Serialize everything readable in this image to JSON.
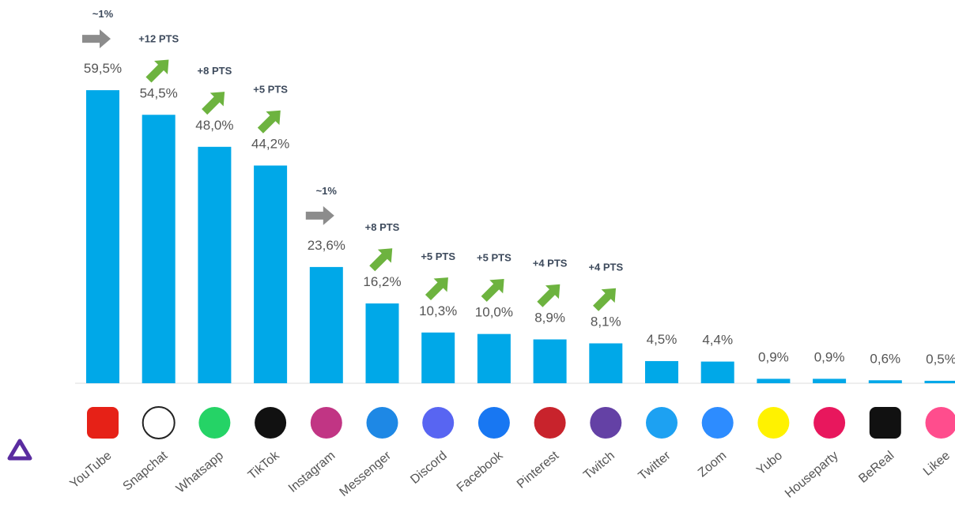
{
  "chart_data": {
    "type": "bar",
    "categories": [
      "YouTube",
      "Snapchat",
      "Whatsapp",
      "TikTok",
      "Instagram",
      "Messenger",
      "Discord",
      "Facebook",
      "Pinterest",
      "Twitch",
      "Twitter",
      "Zoom",
      "Yubo",
      "Houseparty",
      "BeReal",
      "Likee"
    ],
    "values": [
      59.5,
      54.5,
      48.0,
      44.2,
      23.6,
      16.2,
      10.3,
      10.0,
      8.9,
      8.1,
      4.5,
      4.4,
      0.9,
      0.9,
      0.6,
      0.5
    ],
    "value_labels": [
      "59,5%",
      "54,5%",
      "48,0%",
      "44,2%",
      "23,6%",
      "16,2%",
      "10,3%",
      "10,0%",
      "8,9%",
      "8,1%",
      "4,5%",
      "4,4%",
      "0,9%",
      "0,9%",
      "0,6%",
      "0,5%"
    ],
    "trends": [
      {
        "label": "~1%",
        "direction": "flat"
      },
      {
        "label": "+12 PTS",
        "direction": "up"
      },
      {
        "label": "+8 PTS",
        "direction": "up"
      },
      {
        "label": "+5 PTS",
        "direction": "up"
      },
      {
        "label": "~1%",
        "direction": "flat"
      },
      {
        "label": "+8 PTS",
        "direction": "up"
      },
      {
        "label": "+5 PTS",
        "direction": "up"
      },
      {
        "label": "+5 PTS",
        "direction": "up"
      },
      {
        "label": "+4 PTS",
        "direction": "up"
      },
      {
        "label": "+4 PTS",
        "direction": "up"
      },
      null,
      null,
      null,
      null,
      null,
      null
    ],
    "color": "#00a8e8",
    "ylim": [
      0,
      60
    ]
  }
}
